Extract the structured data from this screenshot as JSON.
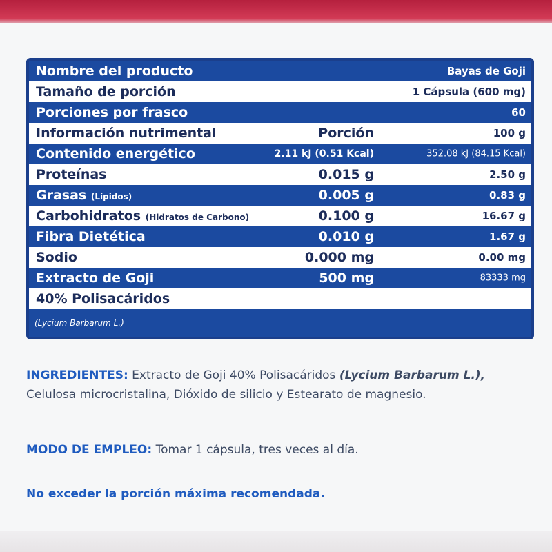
{
  "colors": {
    "table_border": "#1b3f8c",
    "row_fill": "#1b4aa0",
    "heading_blue": "#1f5bbf",
    "body_text": "#3d4a63",
    "top_band": "#c92a48"
  },
  "table": {
    "rows": [
      {
        "name": "Nombre del producto",
        "mid": "",
        "right": "Bayas de Goji",
        "filled": true
      },
      {
        "name": "Tamaño de porción",
        "mid": "",
        "right": "1 Cápsula (600 mg)",
        "filled": false
      },
      {
        "name": "Porciones por frasco",
        "mid": "",
        "right": "60",
        "filled": true
      },
      {
        "name": "Información nutrimental",
        "mid": "Porción",
        "right": "100 g",
        "filled": false
      },
      {
        "name": "Contenido energético",
        "mid": "2.11 kJ (0.51 Kcal)",
        "right": "352.08 kJ (84.15 Kcal)",
        "filled": true
      },
      {
        "name": "Proteínas",
        "mid": "0.015 g",
        "right": "2.50 g",
        "filled": false
      },
      {
        "name": "Grasas",
        "name_note": "(Lípidos)",
        "mid": "0.005 g",
        "right": "0.83 g",
        "filled": true
      },
      {
        "name": "Carbohidratos",
        "name_note": "(Hidratos de Carbono)",
        "mid": "0.100 g",
        "right": "16.67 g",
        "filled": false
      },
      {
        "name": "Fibra Dietética",
        "mid": "0.010 g",
        "right": "1.67 g",
        "filled": true
      },
      {
        "name": "Sodio",
        "mid": "0.000 mg",
        "right": "0.00 mg",
        "filled": false
      },
      {
        "name": "Extracto de Goji",
        "mid": "500 mg",
        "right": "83333 mg",
        "filled": true
      },
      {
        "name": "40% Polisacáridos",
        "mid": "",
        "right": "",
        "filled": false
      },
      {
        "name": "(Lycium Barbarum L.)",
        "mid": "",
        "right": "",
        "filled": true,
        "latin": true
      }
    ]
  },
  "ingredients": {
    "heading": "INGREDIENTES:",
    "text_1": " Extracto de Goji 40% Polisacáridos ",
    "latin": "(Lycium Barbarum L.),",
    "text_2": "Celulosa microcristalina, Dióxido de silicio y Estearato de magnesio."
  },
  "usage": {
    "heading": "MODO DE EMPLEO:",
    "text": " Tomar 1 cápsula, tres veces al día."
  },
  "warning": "No exceder la porción máxima recomendada."
}
